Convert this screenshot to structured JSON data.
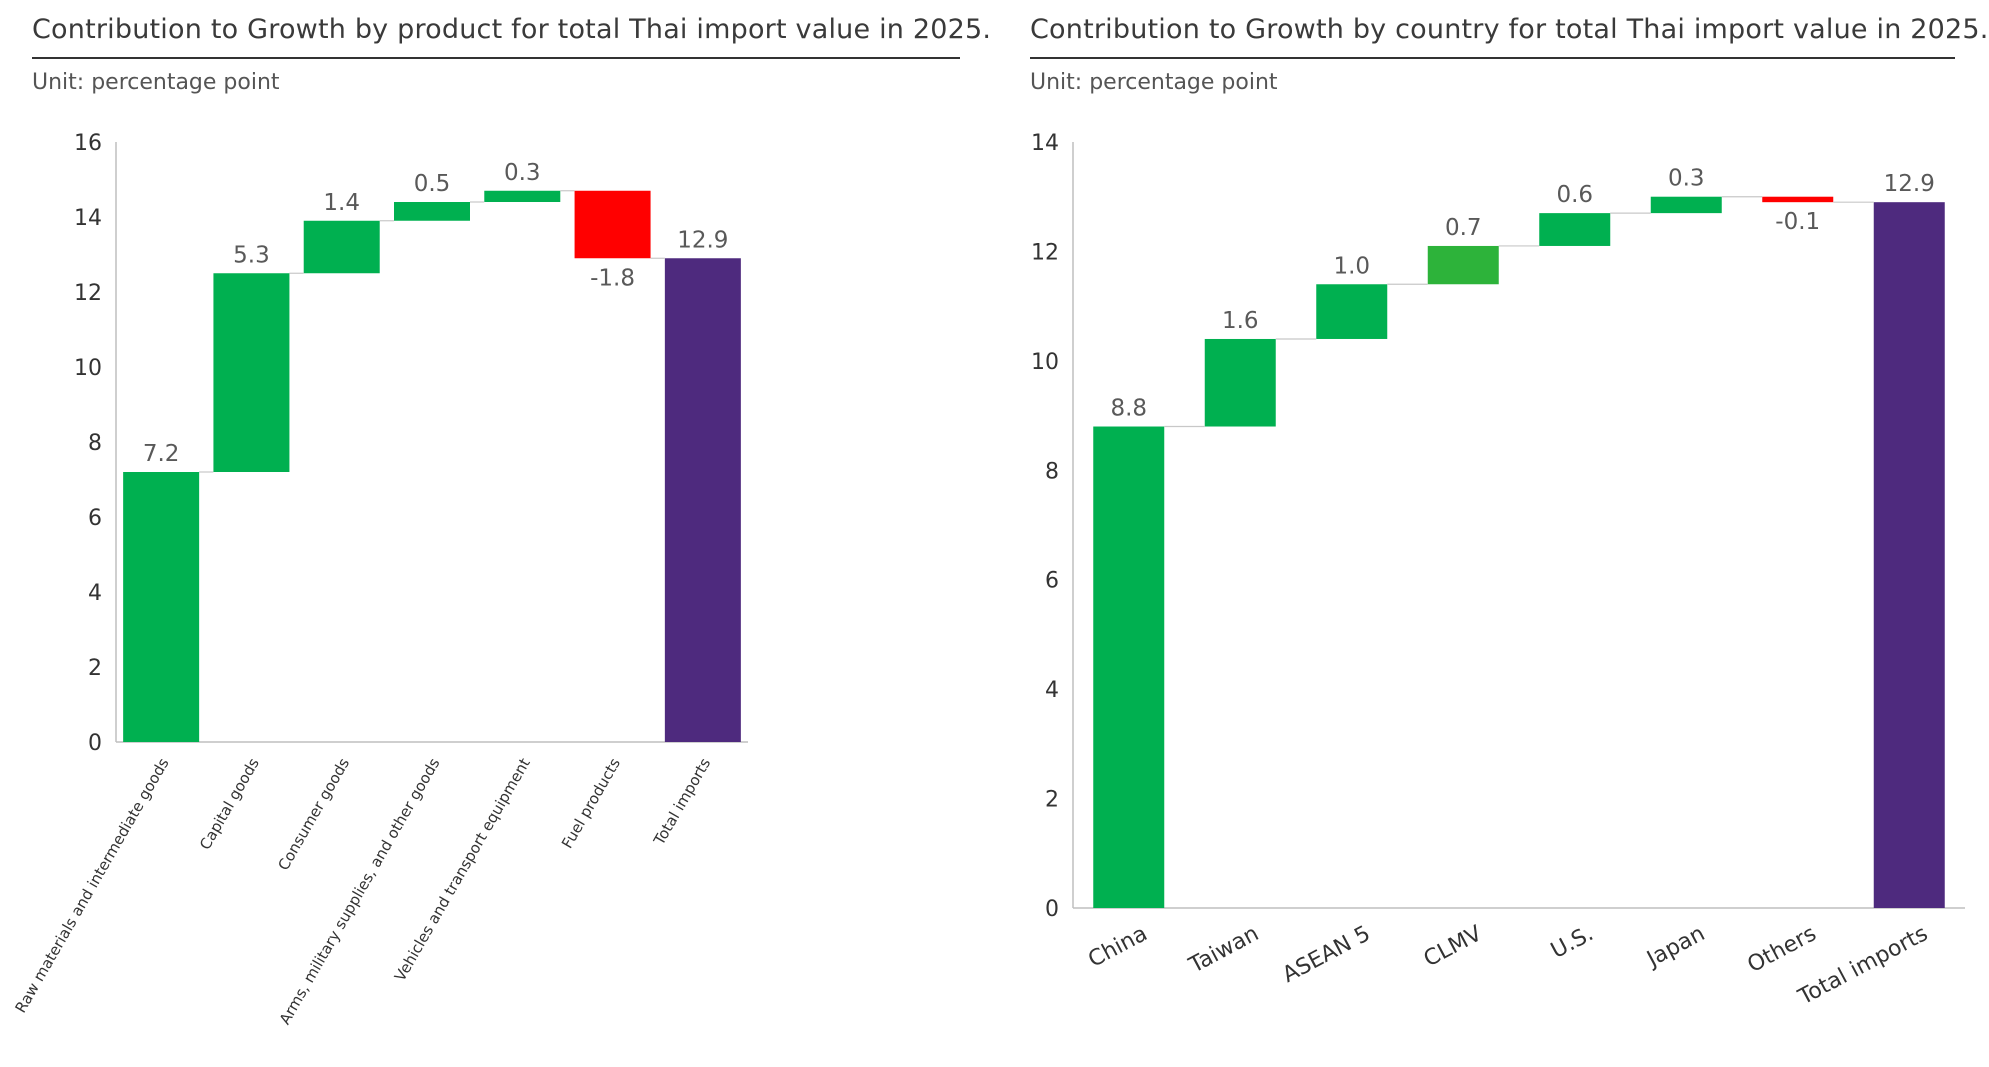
{
  "colors": {
    "positive": "#00b050",
    "positive_alt": "#2db33a",
    "negative": "#ff0000",
    "total": "#4e2a7e",
    "axis": "#bfbfbf"
  },
  "chart_data": [
    {
      "type": "waterfall",
      "title": "Contribution to Growth by product for total Thai import value in 2025.",
      "unit": "Unit: percentage point",
      "ylim": [
        0,
        16
      ],
      "yticks": [
        "0",
        "2",
        "4",
        "6",
        "8",
        "10",
        "12",
        "14",
        "16"
      ],
      "categories": [
        "Raw materials and intermediate goods",
        "Capital goods",
        "Consumer goods",
        "Arms, military supplies, and other goods",
        "Vehicles and transport equipment",
        "Fuel products",
        "Total imports"
      ],
      "values": [
        7.2,
        5.3,
        1.4,
        0.5,
        0.3,
        -1.8,
        12.9
      ],
      "labels": [
        "7.2",
        "5.3",
        "1.4",
        "0.5",
        "0.3",
        "-1.8",
        "12.9"
      ],
      "kinds": [
        "delta",
        "delta",
        "delta",
        "delta",
        "delta",
        "delta",
        "total"
      ]
    },
    {
      "type": "waterfall",
      "title": "Contribution to Growth by country for total Thai import value in 2025.",
      "unit": "Unit: percentage point",
      "ylim": [
        0,
        14
      ],
      "yticks": [
        "0",
        "2",
        "4",
        "6",
        "8",
        "10",
        "12",
        "14"
      ],
      "categories": [
        "China",
        "Taiwan",
        "ASEAN 5",
        "CLMV",
        "U.S.",
        "Japan",
        "Others",
        "Total imports"
      ],
      "values": [
        8.8,
        1.6,
        1.0,
        0.7,
        0.6,
        0.3,
        -0.1,
        12.9
      ],
      "labels": [
        "8.8",
        "1.6",
        "1.0",
        "0.7",
        "0.6",
        "0.3",
        "-0.1",
        "12.9"
      ],
      "kinds": [
        "delta",
        "delta",
        "delta",
        "delta",
        "delta",
        "delta",
        "delta",
        "total"
      ]
    }
  ]
}
